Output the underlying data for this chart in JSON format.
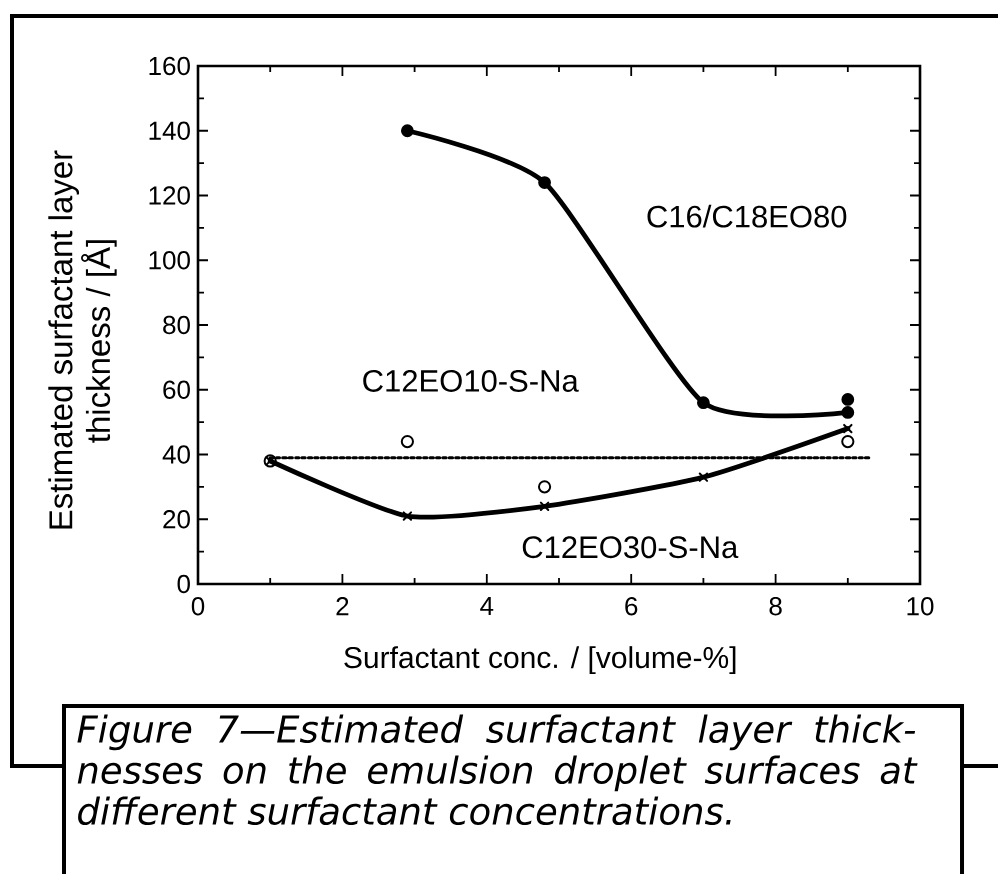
{
  "chart_data": {
    "type": "line",
    "xlabel": "Surfactant conc. / [volume-%]",
    "ylabel": "Estimated surfactant layer thickness / [Å]",
    "annotations": [
      "Figure 7—Estimated surfactant layer thick-nesses on the emulsion droplet surfaces at different surfactant concentrations."
    ],
    "xlim": [
      0,
      10
    ],
    "ylim": [
      0,
      160
    ],
    "xticks": [
      0,
      2,
      4,
      6,
      8,
      10
    ],
    "yticks": [
      0,
      20,
      40,
      60,
      80,
      100,
      120,
      140,
      160
    ],
    "series": [
      {
        "name": "C16/C18EO80",
        "type": "line",
        "color": "#000000",
        "marker": "circle",
        "x": [
          2.9,
          4.8,
          7,
          9
        ],
        "values": [
          140,
          124,
          56,
          53
        ]
      },
      {
        "type": "line",
        "color": "#000000",
        "marker": "circle",
        "x": [
          9
        ],
        "values": [
          57
        ]
      },
      {
        "name": "C12EO10-S-Na",
        "type": "scatter",
        "color": "#000000",
        "marker": "circle",
        "x": [
          1,
          2.9,
          4.8,
          9
        ],
        "values": [
          38,
          44,
          30,
          44
        ]
      },
      {
        "type": "line",
        "color": "#000000",
        "marker": "none",
        "line_style": "dotted",
        "x": [
          1,
          9.3
        ],
        "values": [
          39,
          39
        ]
      },
      {
        "name": "C12EO30-S-Na",
        "type": "line",
        "color": "#000000",
        "marker": "cross",
        "x": [
          1,
          2.9,
          4.8,
          7,
          9
        ],
        "values": [
          38,
          21,
          24,
          33,
          48
        ]
      }
    ]
  }
}
